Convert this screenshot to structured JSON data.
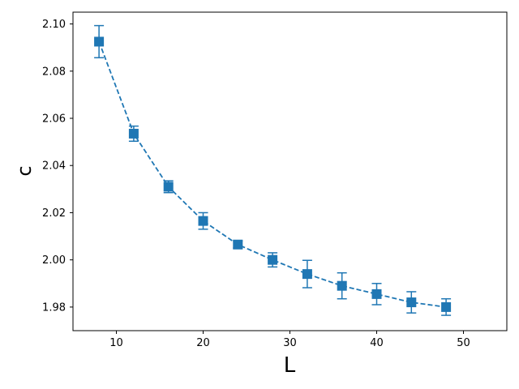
{
  "chart_data": {
    "type": "scatter",
    "title": "",
    "xlabel": "L",
    "ylabel": "c",
    "xlim": [
      5,
      55
    ],
    "ylim": [
      1.97,
      2.105
    ],
    "xticks": [
      10,
      20,
      30,
      40,
      50
    ],
    "yticks": [
      1.98,
      2.0,
      2.02,
      2.04,
      2.06,
      2.08,
      2.1
    ],
    "xtick_labels": [
      "10",
      "20",
      "30",
      "40",
      "50"
    ],
    "ytick_labels": [
      "1.98",
      "2.00",
      "2.02",
      "2.04",
      "2.06",
      "2.08",
      "2.10"
    ],
    "grid": false,
    "legend": "none",
    "color": "#1f77b4",
    "marker": "square",
    "line_style": "dashed",
    "series": [
      {
        "x": [
          8,
          12,
          16,
          20,
          24,
          28,
          32,
          36,
          40,
          44,
          48
        ],
        "y": [
          2.0925,
          2.0535,
          2.031,
          2.0165,
          2.0065,
          2.0,
          1.994,
          1.989,
          1.9855,
          1.982,
          1.98
        ],
        "yerr": [
          0.0068,
          0.0032,
          0.0025,
          0.0035,
          0.0015,
          0.003,
          0.0058,
          0.0055,
          0.0045,
          0.0045,
          0.0035
        ]
      }
    ]
  }
}
